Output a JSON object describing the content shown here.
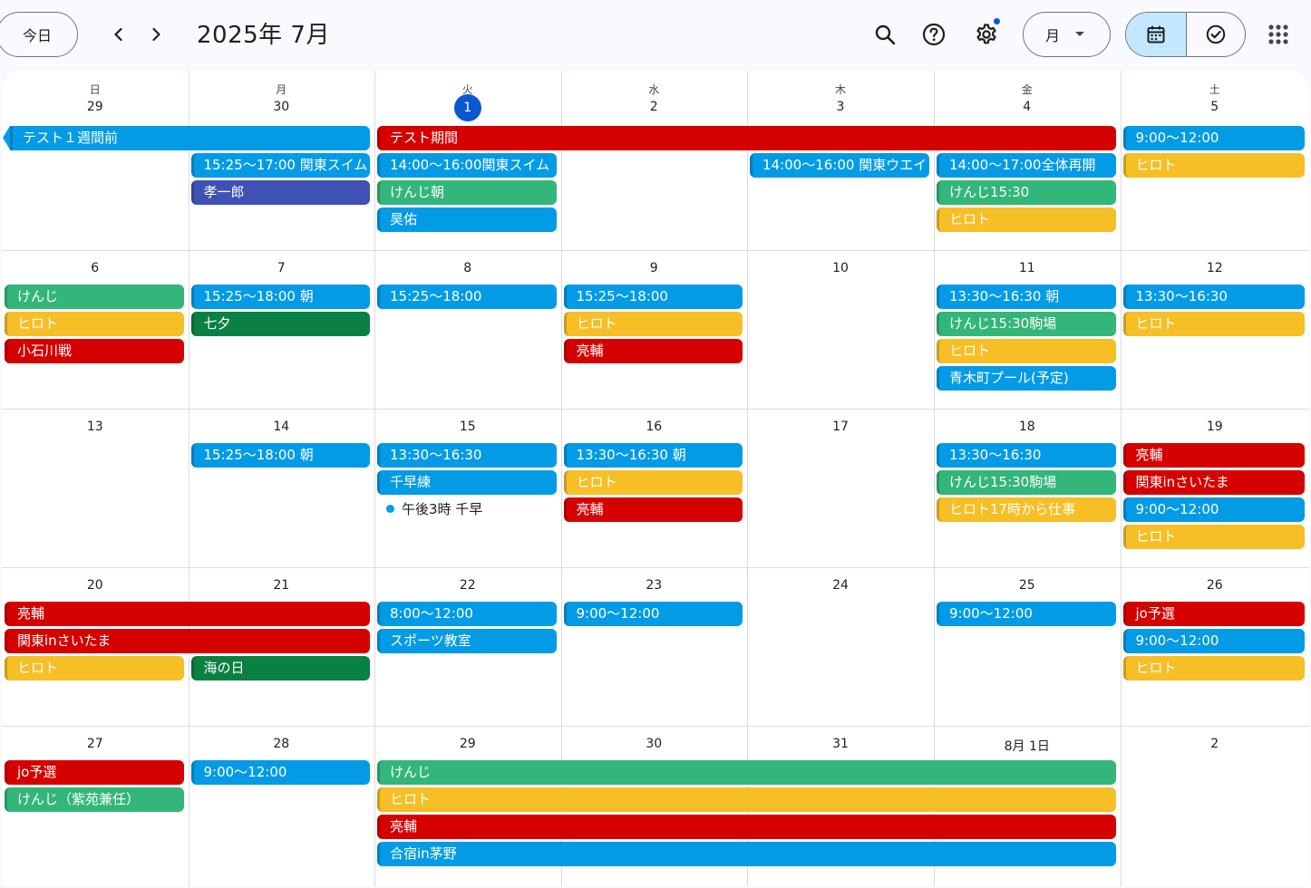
{
  "toolbar": {
    "today_label": "今日",
    "title": "2025年 7月",
    "view_label": "月"
  },
  "weekdays": [
    "日",
    "月",
    "火",
    "水",
    "木",
    "金",
    "土"
  ],
  "weeks": [
    [
      "29",
      "30",
      "1",
      "2",
      "3",
      "4",
      "5"
    ],
    [
      "6",
      "7",
      "8",
      "9",
      "10",
      "11",
      "12"
    ],
    [
      "13",
      "14",
      "15",
      "16",
      "17",
      "18",
      "19"
    ],
    [
      "20",
      "21",
      "22",
      "23",
      "24",
      "25",
      "26"
    ],
    [
      "27",
      "28",
      "29",
      "30",
      "31",
      "8月 1日",
      "2"
    ]
  ],
  "today": {
    "week": 0,
    "day": 2
  },
  "events": [
    {
      "text": "テスト１週間前",
      "week": 0,
      "col": 0,
      "span": 2,
      "row": 0,
      "color": "blue",
      "cont_left": true
    },
    {
      "text": "テスト期間",
      "week": 0,
      "col": 2,
      "span": 4,
      "row": 0,
      "color": "red"
    },
    {
      "text": "9:00〜12:00",
      "week": 0,
      "col": 6,
      "span": 1,
      "row": 0,
      "color": "blue"
    },
    {
      "text": "15:25〜17:00 関東スイム",
      "week": 0,
      "col": 1,
      "span": 1,
      "row": 1,
      "color": "blue"
    },
    {
      "text": "14:00〜16:00関東スイム",
      "week": 0,
      "col": 2,
      "span": 1,
      "row": 1,
      "color": "blue"
    },
    {
      "text": "14:00〜16:00 関東ウエイ",
      "week": 0,
      "col": 4,
      "span": 1,
      "row": 1,
      "color": "blue"
    },
    {
      "text": "14:00〜17:00全体再開",
      "week": 0,
      "col": 5,
      "span": 1,
      "row": 1,
      "color": "blue"
    },
    {
      "text": "ヒロト",
      "week": 0,
      "col": 6,
      "span": 1,
      "row": 1,
      "color": "yellow"
    },
    {
      "text": "孝一郎",
      "week": 0,
      "col": 1,
      "span": 1,
      "row": 2,
      "color": "indigo"
    },
    {
      "text": "けんじ朝",
      "week": 0,
      "col": 2,
      "span": 1,
      "row": 2,
      "color": "green"
    },
    {
      "text": "けんじ15:30",
      "week": 0,
      "col": 5,
      "span": 1,
      "row": 2,
      "color": "green"
    },
    {
      "text": "昊佑",
      "week": 0,
      "col": 2,
      "span": 1,
      "row": 3,
      "color": "blue"
    },
    {
      "text": "ヒロト",
      "week": 0,
      "col": 5,
      "span": 1,
      "row": 3,
      "color": "yellow"
    },
    {
      "text": "けんじ",
      "week": 1,
      "col": 0,
      "span": 1,
      "row": 0,
      "color": "green"
    },
    {
      "text": "15:25〜18:00 朝",
      "week": 1,
      "col": 1,
      "span": 1,
      "row": 0,
      "color": "blue"
    },
    {
      "text": "15:25〜18:00",
      "week": 1,
      "col": 2,
      "span": 1,
      "row": 0,
      "color": "blue"
    },
    {
      "text": "15:25〜18:00",
      "week": 1,
      "col": 3,
      "span": 1,
      "row": 0,
      "color": "blue"
    },
    {
      "text": "13:30〜16:30 朝",
      "week": 1,
      "col": 5,
      "span": 1,
      "row": 0,
      "color": "blue"
    },
    {
      "text": "13:30〜16:30",
      "week": 1,
      "col": 6,
      "span": 1,
      "row": 0,
      "color": "blue"
    },
    {
      "text": "ヒロト",
      "week": 1,
      "col": 0,
      "span": 1,
      "row": 1,
      "color": "yellow"
    },
    {
      "text": "七夕",
      "week": 1,
      "col": 1,
      "span": 1,
      "row": 1,
      "color": "dkgreen"
    },
    {
      "text": "ヒロト",
      "week": 1,
      "col": 3,
      "span": 1,
      "row": 1,
      "color": "yellow"
    },
    {
      "text": "けんじ15:30駒場",
      "week": 1,
      "col": 5,
      "span": 1,
      "row": 1,
      "color": "green"
    },
    {
      "text": "ヒロト",
      "week": 1,
      "col": 6,
      "span": 1,
      "row": 1,
      "color": "yellow"
    },
    {
      "text": "小石川戦",
      "week": 1,
      "col": 0,
      "span": 1,
      "row": 2,
      "color": "red"
    },
    {
      "text": "亮輔",
      "week": 1,
      "col": 3,
      "span": 1,
      "row": 2,
      "color": "red"
    },
    {
      "text": "ヒロト",
      "week": 1,
      "col": 5,
      "span": 1,
      "row": 2,
      "color": "yellow"
    },
    {
      "text": "青木町プール(予定)",
      "week": 1,
      "col": 5,
      "span": 1,
      "row": 3,
      "color": "blue"
    },
    {
      "text": "15:25〜18:00 朝",
      "week": 2,
      "col": 1,
      "span": 1,
      "row": 0,
      "color": "blue"
    },
    {
      "text": "13:30〜16:30",
      "week": 2,
      "col": 2,
      "span": 1,
      "row": 0,
      "color": "blue"
    },
    {
      "text": "13:30〜16:30 朝",
      "week": 2,
      "col": 3,
      "span": 1,
      "row": 0,
      "color": "blue"
    },
    {
      "text": "13:30〜16:30",
      "week": 2,
      "col": 5,
      "span": 1,
      "row": 0,
      "color": "blue"
    },
    {
      "text": "亮輔",
      "week": 2,
      "col": 6,
      "span": 1,
      "row": 0,
      "color": "red"
    },
    {
      "text": "千早練",
      "week": 2,
      "col": 2,
      "span": 1,
      "row": 1,
      "color": "blue"
    },
    {
      "text": "ヒロト",
      "week": 2,
      "col": 3,
      "span": 1,
      "row": 1,
      "color": "yellow"
    },
    {
      "text": "けんじ15:30駒場",
      "week": 2,
      "col": 5,
      "span": 1,
      "row": 1,
      "color": "green"
    },
    {
      "text": "関東inさいたま",
      "week": 2,
      "col": 6,
      "span": 1,
      "row": 1,
      "color": "red"
    },
    {
      "text": "午後3時 千早",
      "week": 2,
      "col": 2,
      "span": 1,
      "row": 2,
      "color": "dot"
    },
    {
      "text": "亮輔",
      "week": 2,
      "col": 3,
      "span": 1,
      "row": 2,
      "color": "red"
    },
    {
      "text": "ヒロト17時から仕事",
      "week": 2,
      "col": 5,
      "span": 1,
      "row": 2,
      "color": "yellow"
    },
    {
      "text": "9:00〜12:00",
      "week": 2,
      "col": 6,
      "span": 1,
      "row": 2,
      "color": "blue"
    },
    {
      "text": "ヒロト",
      "week": 2,
      "col": 6,
      "span": 1,
      "row": 3,
      "color": "yellow"
    },
    {
      "text": "亮輔",
      "week": 3,
      "col": 0,
      "span": 2,
      "row": 0,
      "color": "red"
    },
    {
      "text": "8:00〜12:00",
      "week": 3,
      "col": 2,
      "span": 1,
      "row": 0,
      "color": "blue"
    },
    {
      "text": "9:00〜12:00",
      "week": 3,
      "col": 3,
      "span": 1,
      "row": 0,
      "color": "blue"
    },
    {
      "text": "9:00〜12:00",
      "week": 3,
      "col": 5,
      "span": 1,
      "row": 0,
      "color": "blue"
    },
    {
      "text": "jo予選",
      "week": 3,
      "col": 6,
      "span": 1,
      "row": 0,
      "color": "red"
    },
    {
      "text": "関東inさいたま",
      "week": 3,
      "col": 0,
      "span": 2,
      "row": 1,
      "color": "red"
    },
    {
      "text": "スポーツ教室",
      "week": 3,
      "col": 2,
      "span": 1,
      "row": 1,
      "color": "blue"
    },
    {
      "text": "9:00〜12:00",
      "week": 3,
      "col": 6,
      "span": 1,
      "row": 1,
      "color": "blue"
    },
    {
      "text": "ヒロト",
      "week": 3,
      "col": 0,
      "span": 1,
      "row": 2,
      "color": "yellow"
    },
    {
      "text": "海の日",
      "week": 3,
      "col": 1,
      "span": 1,
      "row": 2,
      "color": "dkgreen"
    },
    {
      "text": "ヒロト",
      "week": 3,
      "col": 6,
      "span": 1,
      "row": 2,
      "color": "yellow"
    },
    {
      "text": "jo予選",
      "week": 4,
      "col": 0,
      "span": 1,
      "row": 0,
      "color": "red"
    },
    {
      "text": "9:00〜12:00",
      "week": 4,
      "col": 1,
      "span": 1,
      "row": 0,
      "color": "blue"
    },
    {
      "text": "けんじ",
      "week": 4,
      "col": 2,
      "span": 4,
      "row": 0,
      "color": "green"
    },
    {
      "text": "けんじ（紫苑兼任）",
      "week": 4,
      "col": 0,
      "span": 1,
      "row": 1,
      "color": "green"
    },
    {
      "text": "ヒロト",
      "week": 4,
      "col": 2,
      "span": 4,
      "row": 1,
      "color": "yellow"
    },
    {
      "text": "亮輔",
      "week": 4,
      "col": 2,
      "span": 4,
      "row": 2,
      "color": "red"
    },
    {
      "text": "合宿in茅野",
      "week": 4,
      "col": 2,
      "span": 4,
      "row": 3,
      "color": "blue"
    }
  ],
  "colors": {
    "blue": "#039be5",
    "red": "#d50000",
    "yellow": "#f6bf26",
    "green": "#33b679",
    "dkgreen": "#0b8043",
    "indigo": "#3f51b5",
    "today": "#0b57d0"
  },
  "icons": {
    "prev": "chevron-left-icon",
    "next": "chevron-right-icon",
    "search": "search-icon",
    "help": "help-icon",
    "settings": "gear-icon",
    "calendar": "calendar-icon",
    "tasks": "task-check-icon",
    "apps": "apps-grid-icon"
  }
}
